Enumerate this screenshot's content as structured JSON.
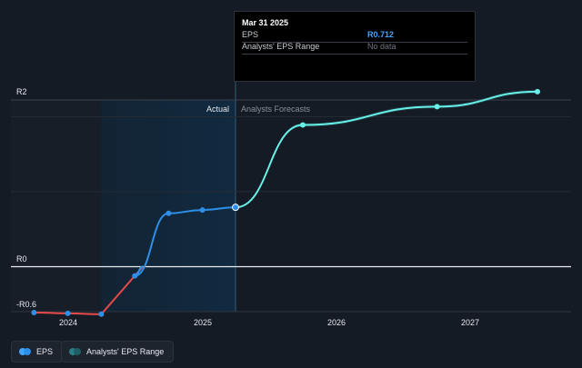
{
  "chart_data": {
    "type": "line",
    "y_ticks": [
      "R2",
      "R0",
      "-R0.6"
    ],
    "x_ticks": [
      "2024",
      "2025",
      "2026",
      "2027"
    ],
    "section_labels": {
      "actual": "Actual",
      "forecast": "Analysts Forecasts"
    },
    "series": [
      {
        "name": "EPS",
        "points": [
          {
            "x": "2023-09-30",
            "y": -0.55
          },
          {
            "x": "2023-12-31",
            "y": -0.56
          },
          {
            "x": "2024-03-31",
            "y": -0.57
          },
          {
            "x": "2024-06-30",
            "y": -0.11
          },
          {
            "x": "2024-09-30",
            "y": 0.64
          },
          {
            "x": "2024-12-31",
            "y": 0.68
          },
          {
            "x": "2025-03-31",
            "y": 0.712
          }
        ]
      },
      {
        "name": "Analysts' EPS Range",
        "points": [
          {
            "x": "2025-03-31",
            "y": 0.712
          },
          {
            "x": "2025-09-30",
            "y": 1.7
          },
          {
            "x": "2026-09-30",
            "y": 1.92
          },
          {
            "x": "2027-06-30",
            "y": 2.1
          }
        ]
      }
    ],
    "colors": {
      "eps_positive": "#2e8fe8",
      "eps_negative": "#e84a4a",
      "forecast": "#68f0e8",
      "actual_band": "#112a40"
    }
  },
  "tooltip": {
    "date": "Mar 31 2025",
    "eps_label": "EPS",
    "eps_value": "R0.712",
    "range_label": "Analysts' EPS Range",
    "range_value": "No data"
  },
  "legend": {
    "eps": "EPS",
    "range": "Analysts' EPS Range"
  }
}
